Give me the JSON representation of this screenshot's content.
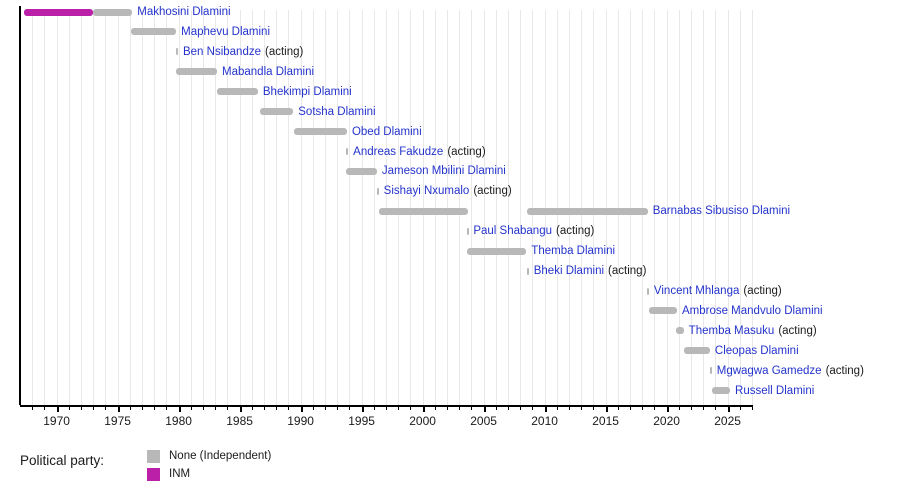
{
  "chart_data": {
    "type": "bar",
    "variant": "timeline-gantt",
    "title": "",
    "x_axis": {
      "start": 1967,
      "end": 2027,
      "major_ticks": [
        1970,
        1975,
        1980,
        1985,
        1990,
        1995,
        2000,
        2005,
        2010,
        2015,
        2020,
        2025
      ],
      "minor_tick_step": 1,
      "grid": true
    },
    "legend": {
      "title": "Political party:",
      "items": [
        {
          "party": "None",
          "label": "None (Independent)",
          "color": "#b8b8b8"
        },
        {
          "party": "INM",
          "label": "INM",
          "color": "#ba20a8"
        }
      ]
    },
    "party_colors": {
      "None": "#b8b8b8",
      "INM": "#ba20a8"
    },
    "rows": [
      {
        "name": "Makhosini Dlamini",
        "suffix": "",
        "segments": [
          {
            "start": 1967.3,
            "end": 1973.0,
            "party": "INM"
          },
          {
            "start": 1973.0,
            "end": 1976.2,
            "party": "None"
          }
        ]
      },
      {
        "name": "Maphevu Dlamini",
        "suffix": "",
        "segments": [
          {
            "start": 1976.1,
            "end": 1979.8,
            "party": "None"
          }
        ]
      },
      {
        "name": "Ben Nsibandze",
        "suffix": "(acting)",
        "segments": [
          {
            "start": 1979.8,
            "end": 1979.95,
            "party": "None"
          }
        ]
      },
      {
        "name": "Mabandla Dlamini",
        "suffix": "",
        "segments": [
          {
            "start": 1979.8,
            "end": 1983.15,
            "party": "None"
          }
        ]
      },
      {
        "name": "Bhekimpi Dlamini",
        "suffix": "",
        "segments": [
          {
            "start": 1983.15,
            "end": 1986.5,
            "party": "None"
          }
        ]
      },
      {
        "name": "Sotsha Dlamini",
        "suffix": "",
        "segments": [
          {
            "start": 1986.7,
            "end": 1989.4,
            "party": "None"
          }
        ]
      },
      {
        "name": "Obed Dlamini",
        "suffix": "",
        "segments": [
          {
            "start": 1989.45,
            "end": 1993.8,
            "party": "None"
          }
        ]
      },
      {
        "name": "Andreas Fakudze",
        "suffix": "(acting)",
        "segments": [
          {
            "start": 1993.75,
            "end": 1993.9,
            "party": "None"
          }
        ]
      },
      {
        "name": "Jameson Mbilini Dlamini",
        "suffix": "",
        "segments": [
          {
            "start": 1993.7,
            "end": 1996.25,
            "party": "None"
          }
        ]
      },
      {
        "name": "Sishayi Nxumalo",
        "suffix": "(acting)",
        "segments": [
          {
            "start": 1996.25,
            "end": 1996.4,
            "party": "None"
          }
        ]
      },
      {
        "name": "Barnabas Sibusiso Dlamini",
        "suffix": "",
        "segments": [
          {
            "start": 1996.4,
            "end": 2003.7,
            "party": "None"
          },
          {
            "start": 2008.55,
            "end": 2018.45,
            "party": "None"
          }
        ]
      },
      {
        "name": "Paul Shabangu",
        "suffix": "(acting)",
        "segments": [
          {
            "start": 2003.6,
            "end": 2003.75,
            "party": "None"
          }
        ]
      },
      {
        "name": "Themba Dlamini",
        "suffix": "",
        "segments": [
          {
            "start": 2003.65,
            "end": 2008.5,
            "party": "None"
          }
        ]
      },
      {
        "name": "Bheki Dlamini",
        "suffix": "(acting)",
        "segments": [
          {
            "start": 2008.55,
            "end": 2008.7,
            "party": "None"
          }
        ]
      },
      {
        "name": "Vincent Mhlanga",
        "suffix": "(acting)",
        "segments": [
          {
            "start": 2018.4,
            "end": 2018.55,
            "party": "None"
          }
        ]
      },
      {
        "name": "Ambrose Mandvulo Dlamini",
        "suffix": "",
        "segments": [
          {
            "start": 2018.55,
            "end": 2020.85,
            "party": "None"
          }
        ]
      },
      {
        "name": "Themba Masuku",
        "suffix": "(acting)",
        "segments": [
          {
            "start": 2020.8,
            "end": 2021.4,
            "party": "None"
          }
        ]
      },
      {
        "name": "Cleopas Dlamini",
        "suffix": "",
        "segments": [
          {
            "start": 2021.4,
            "end": 2023.55,
            "party": "None"
          }
        ]
      },
      {
        "name": "Mgwagwa Gamedze",
        "suffix": "(acting)",
        "segments": [
          {
            "start": 2023.55,
            "end": 2023.7,
            "party": "None"
          }
        ]
      },
      {
        "name": "Russell Dlamini",
        "suffix": "",
        "segments": [
          {
            "start": 2023.7,
            "end": 2025.2,
            "party": "None"
          }
        ]
      }
    ]
  },
  "colors": {
    "name_link": "#2433cc",
    "suffix_text": "#1a1a1a",
    "axis": "#000000",
    "gridline": "#e8e8e8",
    "tick_label": "#1a1a1a"
  }
}
